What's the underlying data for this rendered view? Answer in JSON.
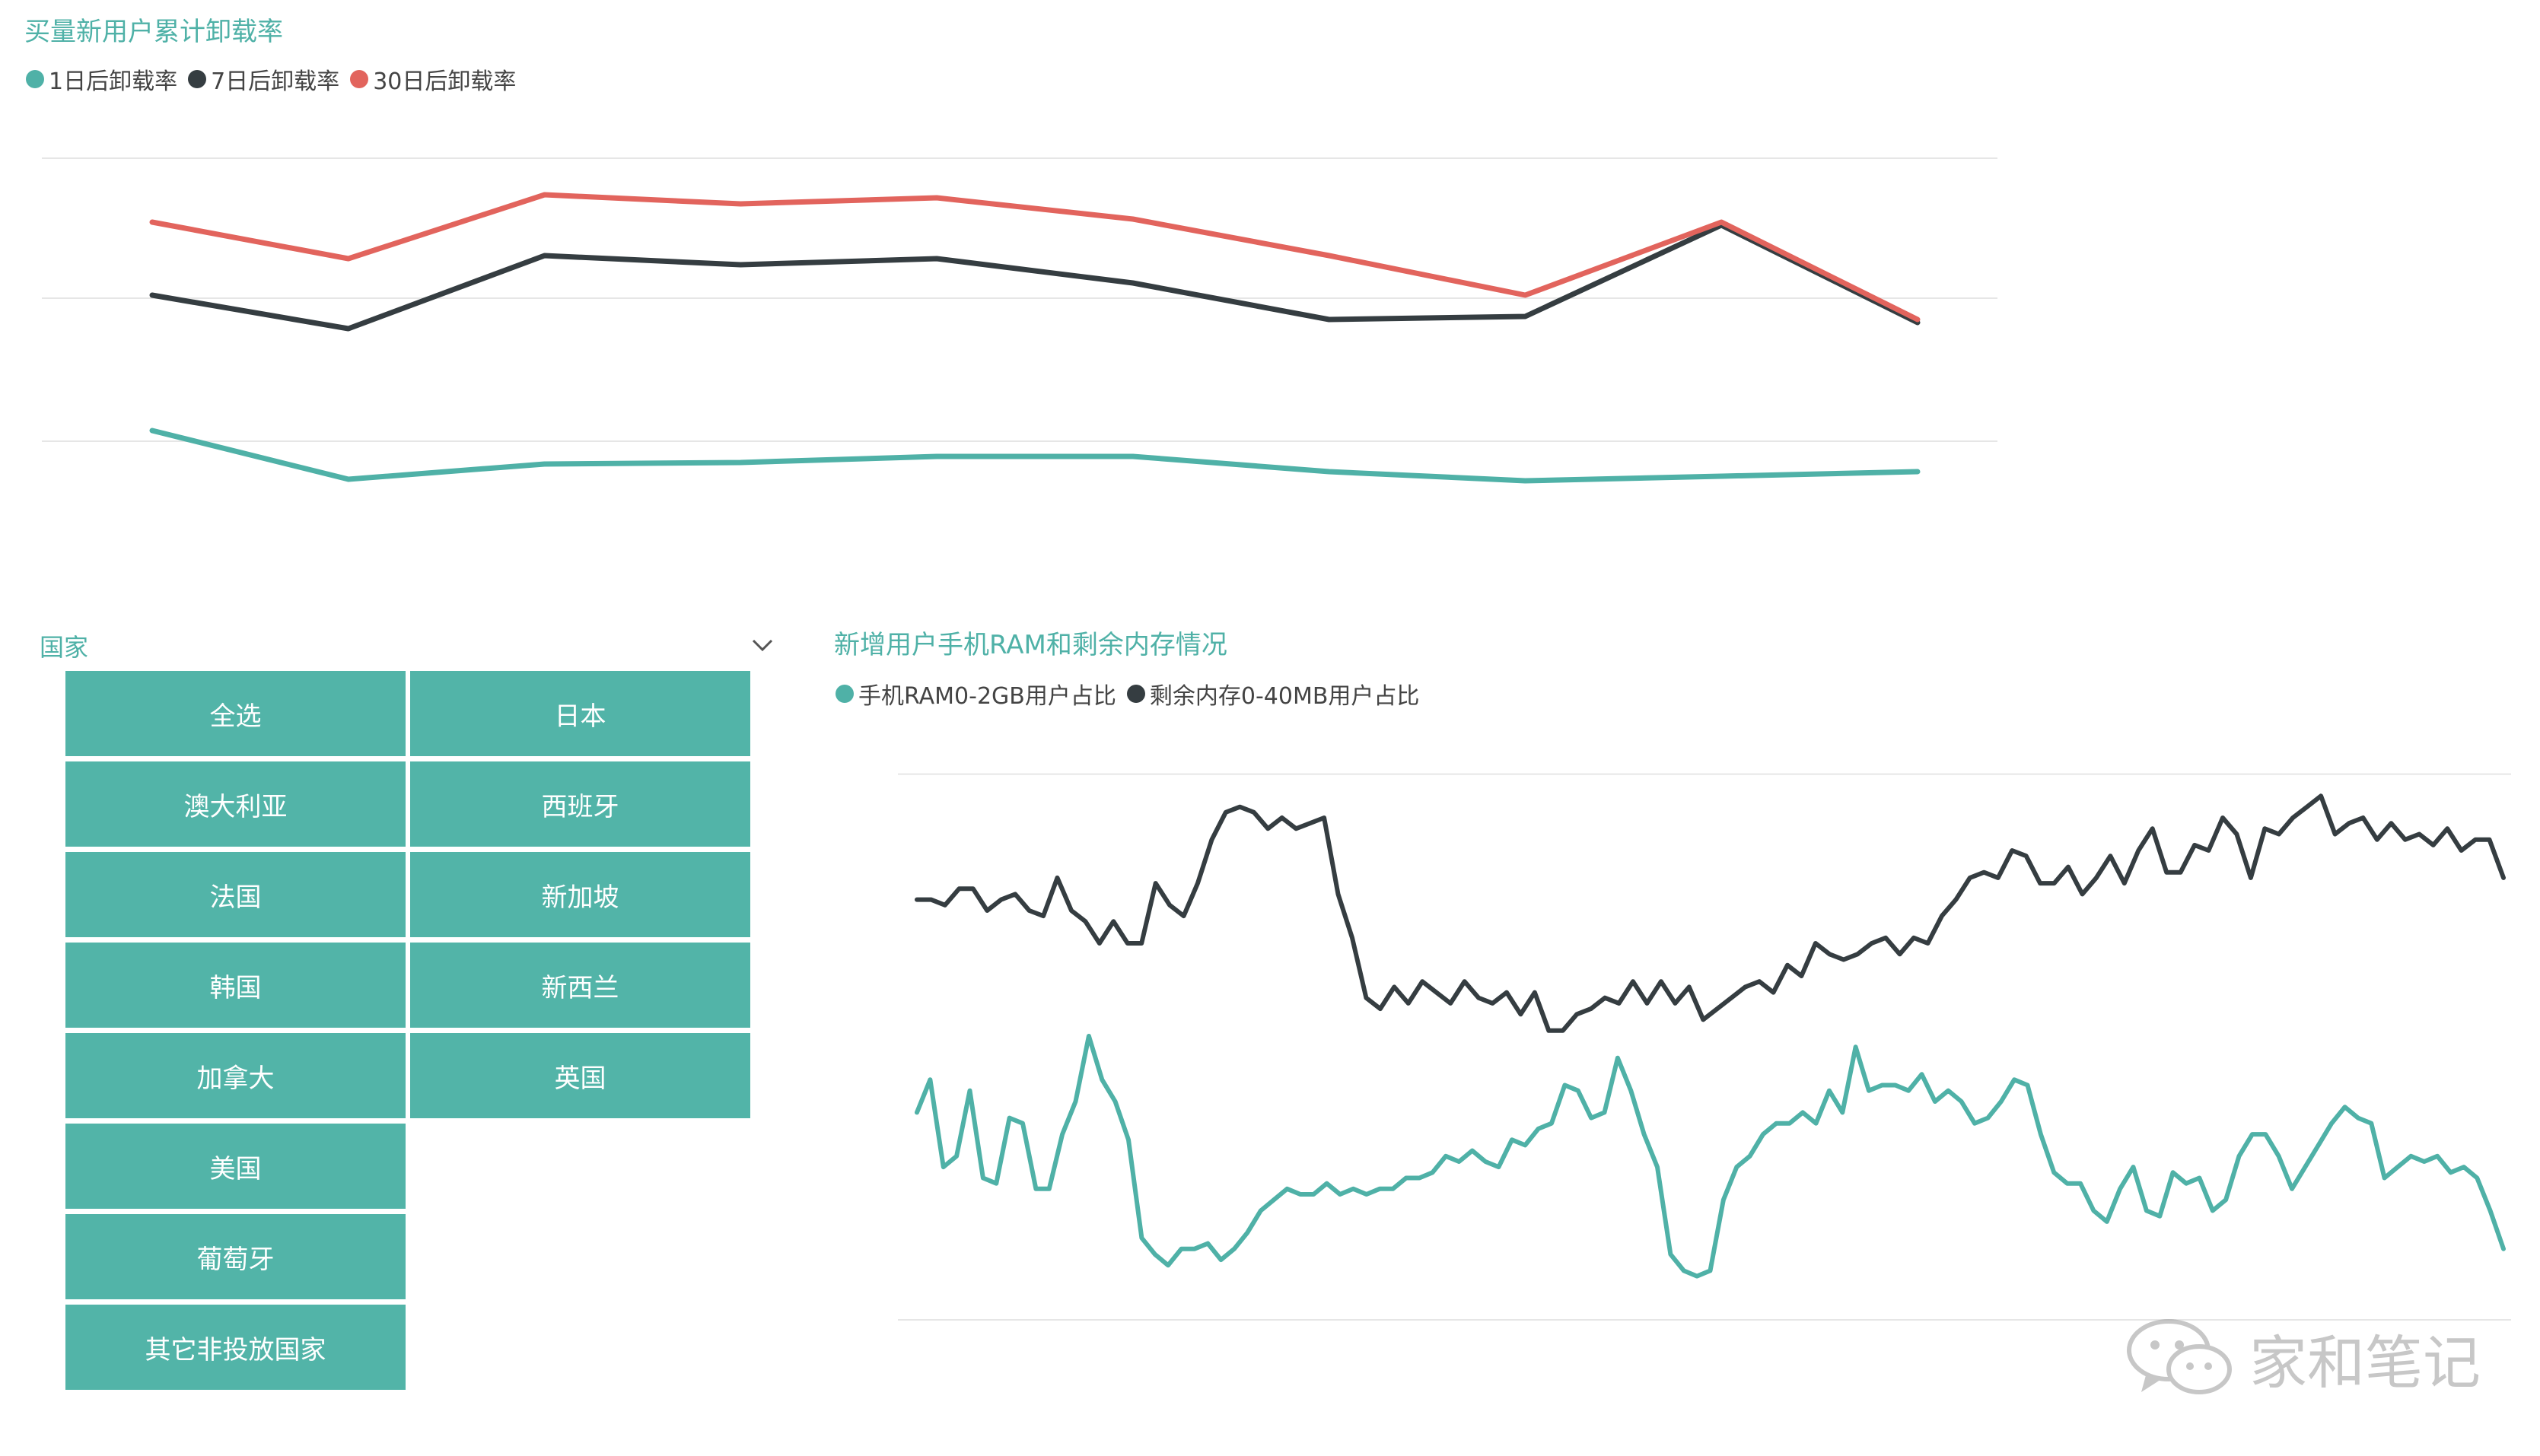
{
  "colors": {
    "teal": "#4fb1a7",
    "dark": "#353d41",
    "red": "#e2645d",
    "slicer_bg": "#52b4a8",
    "slicer_text": "#ffffff",
    "grid": "#e6e6e6"
  },
  "chart_data": [
    {
      "type": "line",
      "title": "买量新用户累计卸载率",
      "xlabel": "",
      "ylabel": "",
      "x": [
        1,
        2,
        3,
        4,
        5,
        6,
        7,
        8,
        9,
        10
      ],
      "series": [
        {
          "name": "1日后卸载率",
          "color": "#4fb1a7",
          "values": [
            23.5,
            7.5,
            12.5,
            13.0,
            15.0,
            15.0,
            10.0,
            7.0,
            8.5,
            10.0
          ]
        },
        {
          "name": "7日后卸载率",
          "color": "#353d41",
          "values": [
            68,
            57,
            81,
            78,
            80,
            72,
            60,
            61,
            91,
            59
          ]
        },
        {
          "name": "30日后卸载率",
          "color": "#e2645d",
          "values": [
            92,
            80,
            101,
            98,
            100,
            93,
            81,
            68,
            92,
            60
          ]
        }
      ],
      "ylim": [
        -15,
        115
      ],
      "gridlines": [
        20,
        67,
        113
      ],
      "legend": "top-left"
    },
    {
      "type": "line",
      "title": "新增用户手机RAM和剩余内存情况",
      "xlabel": "",
      "ylabel": "",
      "series": [
        {
          "name": "手机RAM0-2GB用户占比",
          "color": "#4fb1a7",
          "values": [
            38,
            44,
            28,
            30,
            42,
            26,
            25,
            37,
            36,
            24,
            24,
            34,
            40,
            52,
            44,
            40,
            33,
            15,
            12,
            10,
            13,
            13,
            14,
            11,
            13,
            16,
            20,
            22,
            24,
            23,
            23,
            25,
            23,
            24,
            23,
            24,
            24,
            26,
            26,
            27,
            30,
            29,
            31,
            29,
            28,
            33,
            32,
            35,
            36,
            43,
            42,
            37,
            38,
            48,
            42,
            34,
            28,
            12,
            9,
            8,
            9,
            22,
            28,
            30,
            34,
            36,
            36,
            38,
            36,
            42,
            38,
            50,
            42,
            43,
            43,
            42,
            45,
            40,
            42,
            40,
            36,
            37,
            40,
            44,
            43,
            34,
            27,
            25,
            25,
            20,
            18,
            24,
            28,
            20,
            19,
            27,
            25,
            26,
            20,
            22,
            30,
            34,
            34,
            30,
            24,
            28,
            32,
            36,
            39,
            37,
            36,
            26,
            28,
            30,
            29,
            30,
            27,
            28,
            26,
            20,
            13
          ]
        },
        {
          "name": "剩余内存0-40MB用户占比",
          "color": "#353d41",
          "values": [
            77,
            77,
            76,
            79,
            79,
            75,
            77,
            78,
            75,
            74,
            81,
            75,
            73,
            69,
            73,
            69,
            69,
            80,
            76,
            74,
            80,
            88,
            93,
            94,
            93,
            90,
            92,
            90,
            91,
            92,
            78,
            70,
            59,
            57,
            61,
            58,
            62,
            60,
            58,
            62,
            59,
            58,
            60,
            56,
            60,
            53,
            53,
            56,
            57,
            59,
            58,
            62,
            58,
            62,
            58,
            61,
            55,
            57,
            59,
            61,
            62,
            60,
            65,
            63,
            69,
            67,
            66,
            67,
            69,
            70,
            67,
            70,
            69,
            74,
            77,
            81,
            82,
            81,
            86,
            85,
            80,
            80,
            83,
            78,
            81,
            85,
            80,
            86,
            90,
            82,
            82,
            87,
            86,
            92,
            89,
            81,
            90,
            89,
            92,
            94,
            96,
            89,
            91,
            92,
            88,
            91,
            88,
            89,
            87,
            90,
            86,
            88,
            88,
            81
          ]
        }
      ],
      "ylim": [
        0,
        115
      ],
      "gridlines": [
        0,
        100
      ],
      "legend": "top-left"
    }
  ],
  "slicer": {
    "title": "国家",
    "options": [
      "全选",
      "日本",
      "澳大利亚",
      "西班牙",
      "法国",
      "新加坡",
      "韩国",
      "新西兰",
      "加拿大",
      "英国",
      "美国",
      "葡萄牙",
      "其它非投放国家"
    ]
  },
  "watermark": {
    "text": "家和笔记",
    "icon": "wechat-icon"
  }
}
